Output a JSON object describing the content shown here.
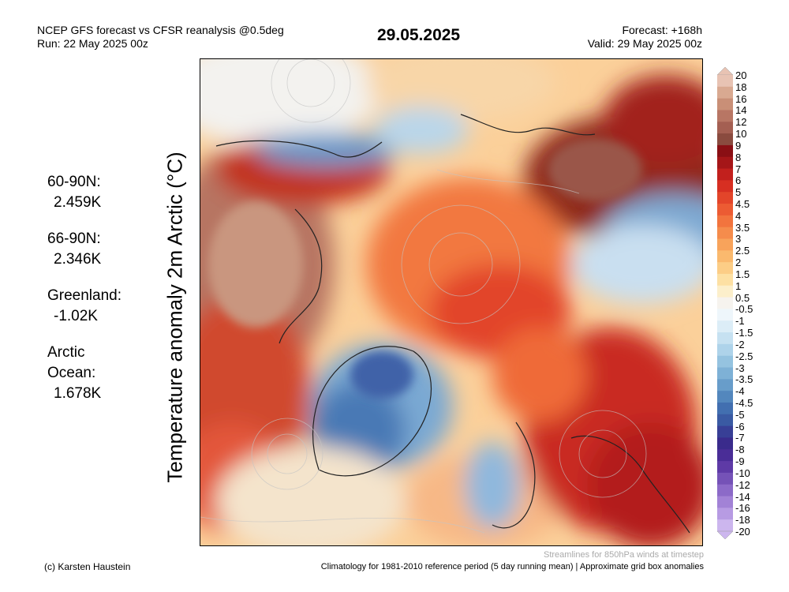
{
  "header": {
    "title_line1": "NCEP GFS forecast vs CFSR reanalysis @0.5deg",
    "title_line2": "Run: 22 May 2025 00z",
    "date": "29.05.2025",
    "forecast_line1": "Forecast: +168h",
    "forecast_line2": "Valid: 29 May 2025 00z"
  },
  "ylabel": "Temperature anomaly 2m Arctic (°C)",
  "stats": [
    {
      "name": "60-90N:",
      "value": "2.459K"
    },
    {
      "name": "66-90N:",
      "value": "2.346K"
    },
    {
      "name": "Greenland:",
      "value": "-1.02K"
    },
    {
      "name": "Arctic Ocean:",
      "value": "1.678K"
    }
  ],
  "colorbar": {
    "ticks": [
      "20",
      "18",
      "16",
      "14",
      "12",
      "10",
      "9",
      "8",
      "7",
      "6",
      "5",
      "4.5",
      "4",
      "3.5",
      "3",
      "2.5",
      "2",
      "1.5",
      "1",
      "0.5",
      "-0.5",
      "-1",
      "-1.5",
      "-2",
      "-2.5",
      "-3",
      "-3.5",
      "-4",
      "-4.5",
      "-5",
      "-6",
      "-7",
      "-8",
      "-9",
      "-10",
      "-12",
      "-14",
      "-16",
      "-18",
      "-20"
    ],
    "colors": [
      "#e8c3b3",
      "#d9a991",
      "#c98f77",
      "#b87664",
      "#a45f52",
      "#8a4b3f",
      "#8a0f14",
      "#a51618",
      "#c2201d",
      "#d72f22",
      "#e3452a",
      "#ec5b33",
      "#f2743e",
      "#f58c4c",
      "#f8a35b",
      "#fab96e",
      "#fccd86",
      "#fde0a3",
      "#fcefcb",
      "#f6f3ee",
      "#eef6fb",
      "#dcedf7",
      "#c6e1f1",
      "#aed3ea",
      "#95c3e0",
      "#7eb1d6",
      "#689dca",
      "#5387bd",
      "#426fb0",
      "#3a5aa3",
      "#383f96",
      "#3a2b8c",
      "#4a2d97",
      "#5e3aa6",
      "#7552b7",
      "#8c6ac8",
      "#a282d6",
      "#b79be3",
      "#ccb6ee"
    ]
  },
  "footer": {
    "streamlines_note": "Streamlines for 850hPa winds at timestep",
    "credit": "(c) Karsten Haustein",
    "climatology": "Climatology for 1981-2010 reference period (5 day running mean) | Approximate grid box anomalies"
  }
}
